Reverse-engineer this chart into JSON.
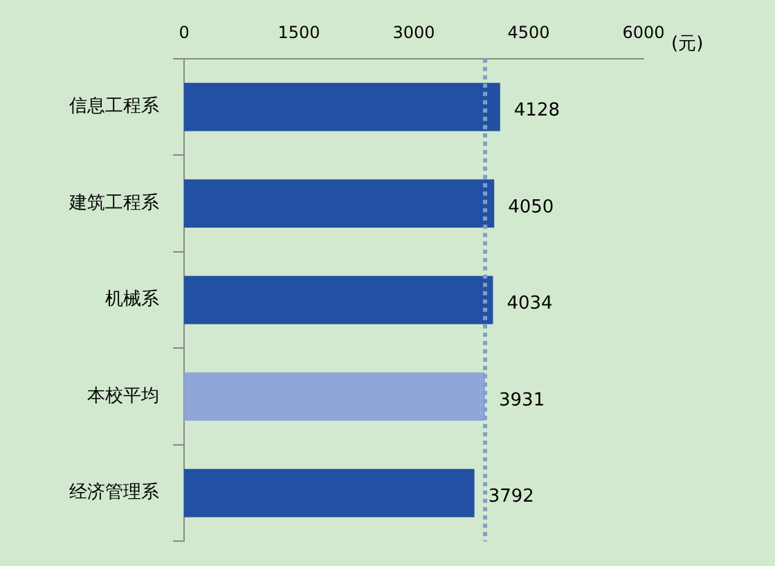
{
  "chart_data": {
    "type": "bar",
    "orientation": "horizontal",
    "xlabel": "(元)",
    "categories": [
      "信息工程系",
      "建筑工程系",
      "机械系",
      "本校平均",
      "经济管理系"
    ],
    "values": [
      4128,
      4050,
      4034,
      3931,
      3792
    ],
    "colors": [
      "#2251a3",
      "#2251a3",
      "#2251a3",
      "#8ea6d8",
      "#2251a3"
    ],
    "xlim": [
      0,
      6000
    ],
    "xticks": [
      0,
      1500,
      3000,
      4500,
      6000
    ],
    "ref_lines": [
      {
        "axis": "x",
        "value": 3931,
        "color": "#7f9fc6",
        "line_style": "dotted"
      }
    ],
    "data_labels": true,
    "grid": false,
    "legend": false
  }
}
